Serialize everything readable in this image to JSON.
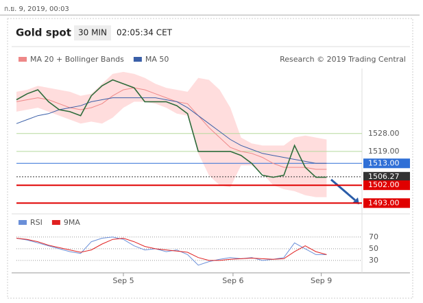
{
  "header": {
    "timestamp": "ก.ย. 9, 2019, 00:03",
    "instrument": "Gold spot",
    "interval": "30 MIN",
    "time": "02:05:34 CET",
    "credit": "Research © 2019 Trading Central"
  },
  "chart_data": {
    "type": "line",
    "x": [
      0,
      2,
      4,
      6,
      8,
      10,
      12,
      14,
      16,
      18,
      20,
      22,
      24,
      26,
      28,
      30,
      32,
      34,
      36,
      38,
      40,
      42,
      44,
      46,
      48,
      50,
      52,
      54,
      56,
      58
    ],
    "xlim": [
      0,
      65
    ],
    "xticks": [
      {
        "value": 20,
        "label": "Sep 5"
      },
      {
        "value": 40.5,
        "label": "Sep 6"
      },
      {
        "value": 57,
        "label": "Sep 9"
      }
    ],
    "ylim": [
      1490,
      1560
    ],
    "series": [
      {
        "name": "MA 20 + Bollinger Bands",
        "color": "#e88",
        "values": [
          1544,
          1545,
          1546,
          1545,
          1543,
          1541,
          1540,
          1541,
          1543,
          1547,
          1550,
          1551,
          1550,
          1548,
          1546,
          1544,
          1543,
          1537,
          1531,
          1526,
          1521,
          1519,
          1518,
          1516,
          1513,
          1511,
          1511,
          1511,
          1510,
          1510
        ],
        "upper": [
          1549,
          1550,
          1552,
          1551,
          1550,
          1549,
          1547,
          1548,
          1553,
          1558,
          1559,
          1558,
          1556,
          1553,
          1551,
          1550,
          1549,
          1556,
          1555,
          1550,
          1541,
          1526,
          1523,
          1522,
          1522,
          1522,
          1526,
          1527,
          1526,
          1525
        ],
        "lower": [
          1539,
          1540,
          1541,
          1539,
          1537,
          1535,
          1533,
          1534,
          1533,
          1536,
          1541,
          1544,
          1544,
          1543,
          1541,
          1538,
          1537,
          1518,
          1507,
          1502,
          1501,
          1512,
          1512,
          1508,
          1502,
          1500,
          1499,
          1497,
          1496,
          1496
        ],
        "band_color": "#fdd"
      },
      {
        "name": "MA 50",
        "color": "#3a5fa8",
        "values": [
          1533,
          1535,
          1537,
          1538,
          1540,
          1541,
          1542,
          1544,
          1545,
          1546,
          1546,
          1546,
          1546,
          1546,
          1545,
          1544,
          1541,
          1537,
          1533,
          1529,
          1525,
          1522,
          1520,
          1518,
          1517,
          1516,
          1515,
          1514,
          1513,
          1513
        ]
      },
      {
        "color": "#2d6b3a",
        "values": [
          1545,
          1548,
          1550,
          1544,
          1540,
          1539,
          1537,
          1547,
          1552,
          1555,
          1553,
          1551,
          1544,
          1544,
          1544,
          1542,
          1538,
          1519,
          1519,
          1519,
          1519,
          1517,
          1513,
          1507,
          1506,
          1507,
          1522,
          1511,
          1506,
          1506
        ]
      }
    ],
    "levels": [
      {
        "value": 1528,
        "label": "1528.00",
        "color": "#b5d99c",
        "box": false
      },
      {
        "value": 1519,
        "label": "1519.00",
        "color": "#b5d99c",
        "box": false
      },
      {
        "value": 1513,
        "label": "1513.00",
        "color": "#2f6fd6",
        "box": true
      },
      {
        "value": 1506.27,
        "label": "1506.27",
        "color": "#333333",
        "box": true,
        "dotted": true
      },
      {
        "value": 1502,
        "label": "1502.00",
        "color": "#e00000",
        "box": true
      },
      {
        "value": 1493,
        "label": "1493.00",
        "color": "#e00000",
        "box": true
      }
    ],
    "rsi": {
      "ylim": [
        10,
        85
      ],
      "yticks": [
        70,
        50,
        30
      ],
      "grid": true,
      "series": [
        {
          "name": "RSI",
          "color": "#6a8fd8",
          "values": [
            68,
            65,
            60,
            55,
            50,
            45,
            42,
            62,
            68,
            70,
            66,
            55,
            48,
            50,
            45,
            48,
            40,
            22,
            28,
            32,
            35,
            33,
            35,
            30,
            32,
            35,
            60,
            50,
            40,
            40
          ]
        },
        {
          "name": "9MA",
          "color": "#e02020",
          "values": [
            68,
            66,
            62,
            56,
            52,
            48,
            44,
            48,
            58,
            66,
            68,
            62,
            54,
            50,
            48,
            46,
            44,
            35,
            30,
            30,
            32,
            33,
            34,
            33,
            32,
            33,
            45,
            55,
            45,
            40
          ]
        }
      ]
    }
  }
}
